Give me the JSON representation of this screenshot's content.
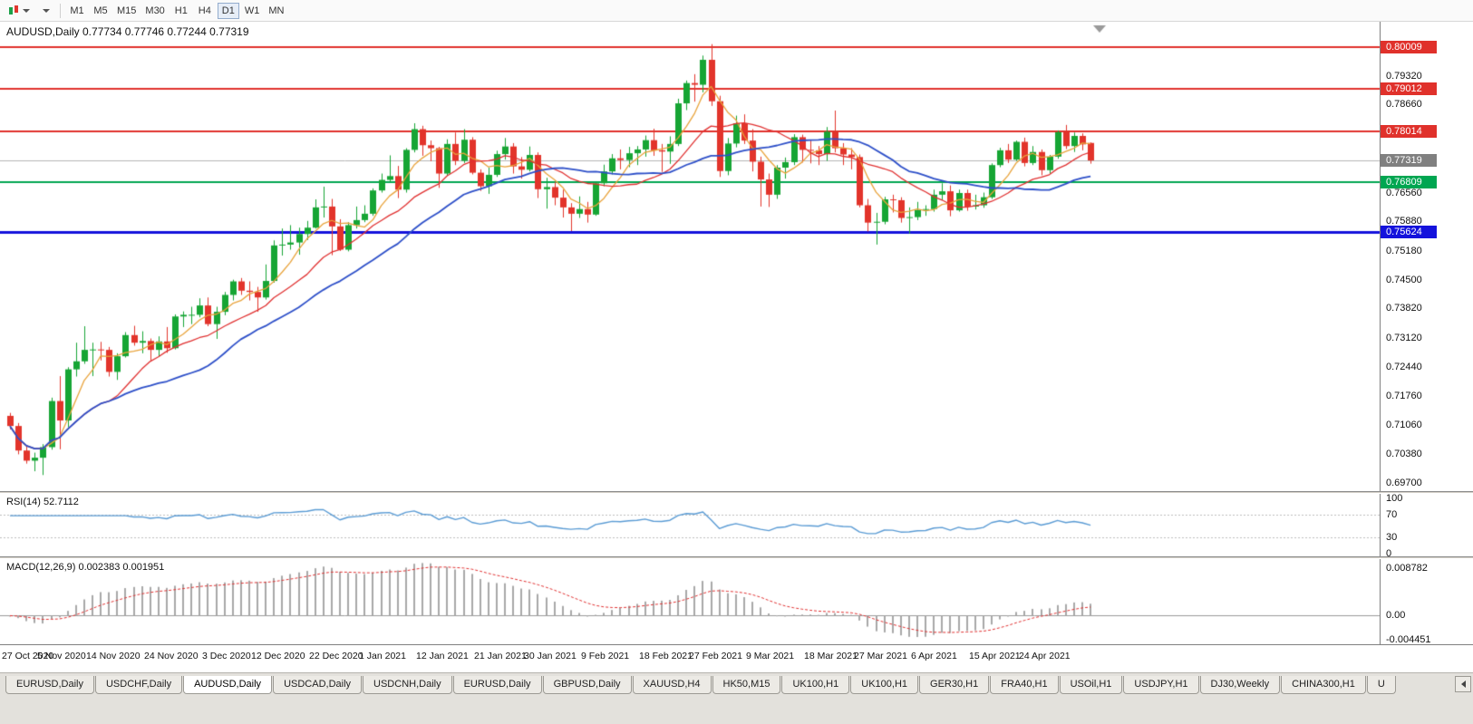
{
  "toolbar": {
    "timeframes": [
      "M1",
      "M5",
      "M15",
      "M30",
      "H1",
      "H4",
      "D1",
      "W1",
      "MN"
    ],
    "selected_timeframe": "D1",
    "icons": {
      "chart_type": "candlestick-chart",
      "dropdown": "caret-down",
      "tab_scroll": "scroll-left"
    }
  },
  "main_chart": {
    "title": "AUDUSD,Daily 0.77734 0.77746 0.77244 0.77319",
    "symbol": "AUDUSD",
    "period": "Daily"
  },
  "chart_data": {
    "type": "candlestick",
    "symbol": "AUDUSD",
    "timeframe": "Daily",
    "current_ohlc": {
      "open": 0.77734,
      "high": 0.77746,
      "low": 0.77244,
      "close": 0.77319
    },
    "ylim": [
      0.695,
      0.806
    ],
    "up_color": "#16A534",
    "down_color": "#E2342B",
    "ohlc": [
      [
        0.7128,
        0.7135,
        0.7096,
        0.7104
      ],
      [
        0.7104,
        0.7111,
        0.7037,
        0.7046
      ],
      [
        0.7046,
        0.7057,
        0.7015,
        0.7022
      ],
      [
        0.7022,
        0.7041,
        0.6997,
        0.7029
      ],
      [
        0.7029,
        0.7061,
        0.6988,
        0.7054
      ],
      [
        0.7054,
        0.7171,
        0.7048,
        0.7163
      ],
      [
        0.7163,
        0.7222,
        0.7049,
        0.7117
      ],
      [
        0.7117,
        0.7243,
        0.7101,
        0.7238
      ],
      [
        0.7238,
        0.7301,
        0.7221,
        0.7257
      ],
      [
        0.7257,
        0.734,
        0.7251,
        0.7284
      ],
      [
        0.7284,
        0.7301,
        0.7222,
        0.7285
      ],
      [
        0.7285,
        0.7303,
        0.7259,
        0.7284
      ],
      [
        0.7284,
        0.7291,
        0.7221,
        0.7232
      ],
      [
        0.7232,
        0.7276,
        0.7213,
        0.7269
      ],
      [
        0.7269,
        0.7326,
        0.7266,
        0.7319
      ],
      [
        0.7319,
        0.7341,
        0.7294,
        0.7301
      ],
      [
        0.7301,
        0.7328,
        0.7276,
        0.7305
      ],
      [
        0.7305,
        0.7311,
        0.7259,
        0.7284
      ],
      [
        0.7284,
        0.7316,
        0.7268,
        0.7304
      ],
      [
        0.7304,
        0.7338,
        0.7277,
        0.7288
      ],
      [
        0.7288,
        0.7368,
        0.7285,
        0.7363
      ],
      [
        0.7363,
        0.7375,
        0.7338,
        0.7367
      ],
      [
        0.7367,
        0.7386,
        0.7345,
        0.7367
      ],
      [
        0.7367,
        0.7406,
        0.7361,
        0.7389
      ],
      [
        0.7389,
        0.7408,
        0.734,
        0.7345
      ],
      [
        0.7345,
        0.7386,
        0.731,
        0.7374
      ],
      [
        0.7374,
        0.7421,
        0.7366,
        0.7414
      ],
      [
        0.7414,
        0.745,
        0.7401,
        0.7446
      ],
      [
        0.7446,
        0.7454,
        0.7414,
        0.7424
      ],
      [
        0.7424,
        0.7446,
        0.7401,
        0.7421
      ],
      [
        0.7421,
        0.7433,
        0.7374,
        0.7408
      ],
      [
        0.7408,
        0.7486,
        0.7403,
        0.7447
      ],
      [
        0.7447,
        0.7543,
        0.7443,
        0.7531
      ],
      [
        0.7531,
        0.7571,
        0.7507,
        0.7533
      ],
      [
        0.7533,
        0.7579,
        0.7521,
        0.7538
      ],
      [
        0.7538,
        0.7573,
        0.7509,
        0.7558
      ],
      [
        0.7558,
        0.7589,
        0.7544,
        0.7573
      ],
      [
        0.7573,
        0.764,
        0.7571,
        0.7621
      ],
      [
        0.7621,
        0.767,
        0.7597,
        0.7623
      ],
      [
        0.7623,
        0.7641,
        0.7508,
        0.7576
      ],
      [
        0.7576,
        0.7593,
        0.7518,
        0.7521
      ],
      [
        0.7521,
        0.7586,
        0.7517,
        0.7579
      ],
      [
        0.7579,
        0.7623,
        0.7571,
        0.7591
      ],
      [
        0.7591,
        0.7626,
        0.7586,
        0.7606
      ],
      [
        0.7606,
        0.7666,
        0.7601,
        0.7661
      ],
      [
        0.7661,
        0.7701,
        0.7656,
        0.7686
      ],
      [
        0.7686,
        0.7744,
        0.7681,
        0.7695
      ],
      [
        0.7695,
        0.7719,
        0.7643,
        0.7663
      ],
      [
        0.7663,
        0.7761,
        0.7656,
        0.7757
      ],
      [
        0.7757,
        0.782,
        0.7751,
        0.7806
      ],
      [
        0.7806,
        0.7814,
        0.7743,
        0.7768
      ],
      [
        0.7768,
        0.7779,
        0.773,
        0.7761
      ],
      [
        0.7761,
        0.7764,
        0.7667,
        0.7701
      ],
      [
        0.7701,
        0.7782,
        0.7696,
        0.7771
      ],
      [
        0.7771,
        0.7798,
        0.7721,
        0.7731
      ],
      [
        0.7731,
        0.7806,
        0.7726,
        0.7781
      ],
      [
        0.7781,
        0.7787,
        0.7699,
        0.7703
      ],
      [
        0.7703,
        0.7711,
        0.766,
        0.7671
      ],
      [
        0.7671,
        0.7715,
        0.7653,
        0.7698
      ],
      [
        0.7698,
        0.7755,
        0.7693,
        0.7747
      ],
      [
        0.7747,
        0.7785,
        0.7734,
        0.7765
      ],
      [
        0.7765,
        0.7773,
        0.7701,
        0.7718
      ],
      [
        0.7718,
        0.774,
        0.7689,
        0.771
      ],
      [
        0.771,
        0.7765,
        0.7706,
        0.7745
      ],
      [
        0.7745,
        0.7751,
        0.7643,
        0.7664
      ],
      [
        0.7664,
        0.7691,
        0.7618,
        0.7669
      ],
      [
        0.7669,
        0.7681,
        0.7626,
        0.7644
      ],
      [
        0.7644,
        0.7663,
        0.7597,
        0.7621
      ],
      [
        0.7621,
        0.7631,
        0.7565,
        0.7606
      ],
      [
        0.7606,
        0.7647,
        0.7596,
        0.7617
      ],
      [
        0.7617,
        0.7634,
        0.7585,
        0.7604
      ],
      [
        0.7604,
        0.7681,
        0.7601,
        0.7678
      ],
      [
        0.7678,
        0.7722,
        0.7671,
        0.7706
      ],
      [
        0.7706,
        0.7747,
        0.7699,
        0.7737
      ],
      [
        0.7737,
        0.7758,
        0.7711,
        0.7733
      ],
      [
        0.7733,
        0.7764,
        0.7716,
        0.7749
      ],
      [
        0.7749,
        0.7766,
        0.7721,
        0.7758
      ],
      [
        0.7758,
        0.7791,
        0.7741,
        0.778
      ],
      [
        0.778,
        0.7807,
        0.7743,
        0.7756
      ],
      [
        0.7756,
        0.7771,
        0.7705,
        0.7753
      ],
      [
        0.7753,
        0.7789,
        0.7724,
        0.7771
      ],
      [
        0.7771,
        0.7878,
        0.7766,
        0.7867
      ],
      [
        0.7867,
        0.7921,
        0.7851,
        0.7915
      ],
      [
        0.7915,
        0.7936,
        0.7871,
        0.7911
      ],
      [
        0.7911,
        0.798,
        0.7893,
        0.797
      ],
      [
        0.797,
        0.8007,
        0.7861,
        0.7872
      ],
      [
        0.7872,
        0.7885,
        0.7693,
        0.7707
      ],
      [
        0.7707,
        0.7785,
        0.7697,
        0.7772
      ],
      [
        0.7772,
        0.7838,
        0.7763,
        0.782
      ],
      [
        0.782,
        0.7841,
        0.7771,
        0.7779
      ],
      [
        0.7779,
        0.7806,
        0.7706,
        0.7729
      ],
      [
        0.7729,
        0.7741,
        0.7623,
        0.7687
      ],
      [
        0.7687,
        0.7701,
        0.7622,
        0.7651
      ],
      [
        0.7651,
        0.7721,
        0.7641,
        0.7715
      ],
      [
        0.7715,
        0.7739,
        0.7689,
        0.7728
      ],
      [
        0.7728,
        0.7794,
        0.7721,
        0.7787
      ],
      [
        0.7787,
        0.7793,
        0.7727,
        0.7757
      ],
      [
        0.7757,
        0.7779,
        0.7725,
        0.7756
      ],
      [
        0.7756,
        0.7766,
        0.7721,
        0.7747
      ],
      [
        0.7747,
        0.7811,
        0.7731,
        0.78
      ],
      [
        0.78,
        0.785,
        0.7751,
        0.7761
      ],
      [
        0.7761,
        0.7773,
        0.7721,
        0.7746
      ],
      [
        0.7746,
        0.7761,
        0.7711,
        0.774
      ],
      [
        0.774,
        0.7746,
        0.7621,
        0.7626
      ],
      [
        0.7626,
        0.7641,
        0.7564,
        0.7585
      ],
      [
        0.7585,
        0.7608,
        0.7533,
        0.7587
      ],
      [
        0.7587,
        0.7646,
        0.7581,
        0.764
      ],
      [
        0.764,
        0.7651,
        0.7609,
        0.7638
      ],
      [
        0.7638,
        0.7645,
        0.7585,
        0.7596
      ],
      [
        0.7596,
        0.7621,
        0.7559,
        0.7598
      ],
      [
        0.7598,
        0.7634,
        0.7591,
        0.7615
      ],
      [
        0.7615,
        0.7626,
        0.7601,
        0.7617
      ],
      [
        0.7617,
        0.7663,
        0.7611,
        0.7651
      ],
      [
        0.7651,
        0.7678,
        0.7638,
        0.7659
      ],
      [
        0.7659,
        0.7673,
        0.76,
        0.7614
      ],
      [
        0.7614,
        0.7663,
        0.7611,
        0.7655
      ],
      [
        0.7655,
        0.7663,
        0.7613,
        0.7623
      ],
      [
        0.7623,
        0.7651,
        0.7616,
        0.7626
      ],
      [
        0.7626,
        0.7656,
        0.762,
        0.7645
      ],
      [
        0.7645,
        0.7725,
        0.7641,
        0.7721
      ],
      [
        0.7721,
        0.7762,
        0.7716,
        0.7756
      ],
      [
        0.7756,
        0.7771,
        0.7726,
        0.7734
      ],
      [
        0.7734,
        0.7779,
        0.7731,
        0.7776
      ],
      [
        0.7776,
        0.7786,
        0.7718,
        0.7726
      ],
      [
        0.7726,
        0.7766,
        0.7721,
        0.7752
      ],
      [
        0.7752,
        0.7758,
        0.7697,
        0.7709
      ],
      [
        0.7709,
        0.7745,
        0.7701,
        0.7741
      ],
      [
        0.7741,
        0.7803,
        0.7736,
        0.7799
      ],
      [
        0.7799,
        0.7816,
        0.7759,
        0.7766
      ],
      [
        0.7766,
        0.7798,
        0.7752,
        0.779
      ],
      [
        0.779,
        0.7796,
        0.7756,
        0.777
      ],
      [
        0.77734,
        0.77746,
        0.77244,
        0.77319
      ]
    ],
    "x_ticks": [
      {
        "bar": 0,
        "label": "27 Oct 2020"
      },
      {
        "bar": 7,
        "label": "5 Nov 2020"
      },
      {
        "bar": 13,
        "label": "14 Nov 2020"
      },
      {
        "bar": 20,
        "label": "24 Nov 2020"
      },
      {
        "bar": 27,
        "label": "3 Dec 2020"
      },
      {
        "bar": 33,
        "label": "12 Dec 2020"
      },
      {
        "bar": 40,
        "label": "22 Dec 2020"
      },
      {
        "bar": 46,
        "label": "1 Jan 2021"
      },
      {
        "bar": 53,
        "label": "12 Jan 2021"
      },
      {
        "bar": 60,
        "label": "21 Jan 2021"
      },
      {
        "bar": 66,
        "label": "30 Jan 2021"
      },
      {
        "bar": 73,
        "label": "9 Feb 2021"
      },
      {
        "bar": 80,
        "label": "18 Feb 2021"
      },
      {
        "bar": 86,
        "label": "27 Feb 2021"
      },
      {
        "bar": 93,
        "label": "9 Mar 2021"
      },
      {
        "bar": 100,
        "label": "18 Mar 2021"
      },
      {
        "bar": 106,
        "label": "27 Mar 2021"
      },
      {
        "bar": 113,
        "label": "6 Apr 2021"
      },
      {
        "bar": 120,
        "label": "15 Apr 2021"
      },
      {
        "bar": 126,
        "label": "24 Apr 2021"
      }
    ],
    "y_axis_labels": [
      {
        "value": 0.7932,
        "label": "0.79320"
      },
      {
        "value": 0.7866,
        "label": "0.78660"
      },
      {
        "value": 0.7656,
        "label": "0.76560"
      },
      {
        "value": 0.7588,
        "label": "0.75880"
      },
      {
        "value": 0.7518,
        "label": "0.75180"
      },
      {
        "value": 0.745,
        "label": "0.74500"
      },
      {
        "value": 0.7382,
        "label": "0.73820"
      },
      {
        "value": 0.7312,
        "label": "0.73120"
      },
      {
        "value": 0.7244,
        "label": "0.72440"
      },
      {
        "value": 0.7176,
        "label": "0.71760"
      },
      {
        "value": 0.7106,
        "label": "0.71060"
      },
      {
        "value": 0.7038,
        "label": "0.70380"
      },
      {
        "value": 0.697,
        "label": "0.69700"
      }
    ],
    "hlines": [
      {
        "value": 0.80009,
        "label": "0.80009",
        "color": "#E0312B",
        "width": 2
      },
      {
        "value": 0.79012,
        "label": "0.79012",
        "color": "#E0312B",
        "width": 2
      },
      {
        "value": 0.78014,
        "label": "0.78014",
        "color": "#E0312B",
        "width": 2
      },
      {
        "value": 0.76809,
        "label": "0.76809",
        "color": "#00A651",
        "width": 2
      },
      {
        "value": 0.75624,
        "label": "0.75624",
        "color": "#1412DC",
        "width": 3
      }
    ],
    "current_price": {
      "value": 0.77319,
      "label": "0.77319",
      "color": "#808080"
    },
    "moving_averages": [
      {
        "name": "ma-fast",
        "period": 5,
        "color": "#E8A33B",
        "width": 1.3
      },
      {
        "name": "ma-mid",
        "period": 13,
        "color": "#E03030",
        "width": 1.3
      },
      {
        "name": "ma-slow",
        "period": 24,
        "color": "#2D4FC8",
        "width": 1.8
      }
    ],
    "indicators": {
      "rsi": {
        "period": 14,
        "current": "52.7112"
      },
      "macd": {
        "fast": 12,
        "slow": 26,
        "signal": 9,
        "current_main": "0.002383",
        "current_signal": "0.001951"
      }
    }
  },
  "rsi_panel": {
    "label": "RSI(14) 52.7112",
    "line_color": "#5A9BD4",
    "levels": [
      {
        "value": 100,
        "label": "100",
        "dashed": false
      },
      {
        "value": 70,
        "label": "70",
        "dashed": true
      },
      {
        "value": 30,
        "label": "30",
        "dashed": true
      },
      {
        "value": 0,
        "label": "0",
        "dashed": false
      }
    ]
  },
  "macd_panel": {
    "label": "MACD(12,26,9) 0.002383 0.001951",
    "histogram_color": "#A8A8A8",
    "signal_color": "#E03030",
    "axis": [
      {
        "value": 0.008782,
        "label": "0.008782"
      },
      {
        "value": 0,
        "label": "0.00"
      },
      {
        "value": -0.004451,
        "label": "-0.004451"
      }
    ]
  },
  "tabs": {
    "active_index": 2,
    "items": [
      "EURUSD,Daily",
      "USDCHF,Daily",
      "AUDUSD,Daily",
      "USDCAD,Daily",
      "USDCNH,Daily",
      "EURUSD,Daily",
      "GBPUSD,Daily",
      "XAUUSD,H4",
      "HK50,M15",
      "UK100,H1",
      "UK100,H1",
      "GER30,H1",
      "FRA40,H1",
      "USOil,H1",
      "USDJPY,H1",
      "DJ30,Weekly",
      "CHINA300,H1",
      "U"
    ]
  }
}
